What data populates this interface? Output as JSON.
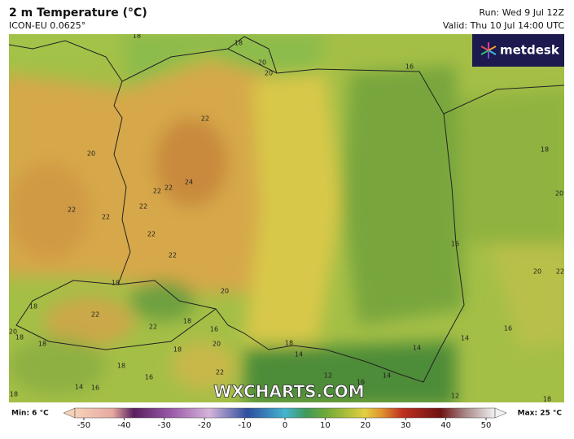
{
  "header": {
    "title": "2 m Temperature (°C)",
    "model": "ICON-EU 0.0625°",
    "run": "Run: Wed 9 Jul 12Z",
    "valid": "Valid: Thu 10 Jul 14:00 UTC"
  },
  "logo": "metdesk",
  "watermark": "WXCHARTS.COM",
  "contour_labels": [
    "18",
    "18",
    "20",
    "20",
    "16",
    "22",
    "20",
    "24",
    "22",
    "22",
    "22",
    "22",
    "22",
    "22",
    "22",
    "18",
    "20",
    "16",
    "20",
    "22",
    "18",
    "18",
    "20",
    "22",
    "18",
    "22",
    "16",
    "20",
    "20",
    "18",
    "18",
    "18",
    "18",
    "14",
    "16",
    "14",
    "14",
    "18",
    "16",
    "14",
    "16",
    "12",
    "22",
    "14",
    "16",
    "18",
    "18",
    "12"
  ],
  "legend": {
    "min": "Min: 6 °C",
    "max": "Max: 25 °C",
    "ticks": [
      -50,
      -40,
      -30,
      -20,
      -10,
      0,
      10,
      20,
      30,
      40,
      50
    ]
  }
}
